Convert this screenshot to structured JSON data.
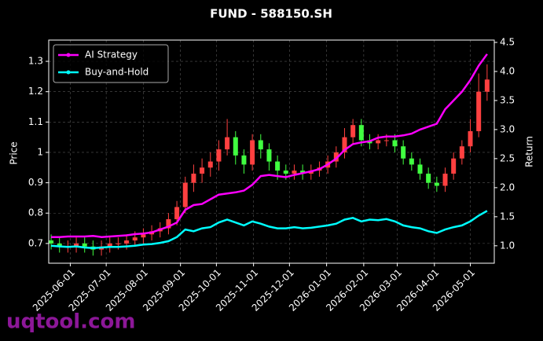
{
  "chart_data": {
    "type": "candlestick",
    "title": "FUND - 588150.SH",
    "ylabel": "Price",
    "y2label": "Return",
    "watermark": "uqtool.com",
    "x": [
      "2025-05-16",
      "2025-05-23",
      "2025-05-30",
      "2025-06-06",
      "2025-06-13",
      "2025-06-20",
      "2025-06-27",
      "2025-07-04",
      "2025-07-11",
      "2025-07-18",
      "2025-07-25",
      "2025-08-01",
      "2025-08-08",
      "2025-08-15",
      "2025-08-22",
      "2025-08-29",
      "2025-09-05",
      "2025-09-12",
      "2025-09-19",
      "2025-09-26",
      "2025-10-03",
      "2025-10-10",
      "2025-10-17",
      "2025-10-24",
      "2025-10-31",
      "2025-11-07",
      "2025-11-14",
      "2025-11-21",
      "2025-11-28",
      "2025-12-05",
      "2025-12-12",
      "2025-12-19",
      "2025-12-26",
      "2026-01-02",
      "2026-01-09",
      "2026-01-16",
      "2026-01-23",
      "2026-01-30",
      "2026-02-06",
      "2026-02-13",
      "2026-02-20",
      "2026-02-27",
      "2026-03-06",
      "2026-03-13",
      "2026-03-20",
      "2026-03-27",
      "2026-04-03",
      "2026-04-10",
      "2026-04-17",
      "2026-04-24",
      "2026-05-01",
      "2026-05-08",
      "2026-05-15"
    ],
    "open": [
      0.71,
      0.7,
      0.69,
      0.69,
      0.7,
      0.69,
      0.68,
      0.69,
      0.7,
      0.7,
      0.71,
      0.72,
      0.73,
      0.74,
      0.75,
      0.78,
      0.82,
      0.9,
      0.93,
      0.95,
      0.97,
      1.01,
      1.05,
      0.99,
      0.96,
      1.04,
      1.01,
      0.97,
      0.94,
      0.93,
      0.94,
      0.93,
      0.94,
      0.95,
      0.97,
      1.0,
      1.05,
      1.09,
      1.04,
      1.03,
      1.04,
      1.04,
      1.02,
      0.98,
      0.96,
      0.93,
      0.9,
      0.89,
      0.93,
      0.98,
      1.02,
      1.07,
      1.2
    ],
    "high": [
      0.73,
      0.72,
      0.71,
      0.72,
      0.72,
      0.71,
      0.71,
      0.72,
      0.72,
      0.73,
      0.74,
      0.75,
      0.76,
      0.77,
      0.8,
      0.84,
      0.92,
      0.96,
      0.98,
      1.0,
      1.04,
      1.11,
      1.07,
      1.01,
      1.06,
      1.06,
      1.03,
      0.99,
      0.96,
      0.96,
      0.96,
      0.96,
      0.97,
      0.99,
      1.02,
      1.08,
      1.11,
      1.11,
      1.06,
      1.06,
      1.06,
      1.06,
      1.04,
      1.0,
      0.98,
      0.95,
      0.92,
      0.95,
      1.0,
      1.04,
      1.11,
      1.26,
      1.29
    ],
    "low": [
      0.68,
      0.67,
      0.67,
      0.67,
      0.67,
      0.66,
      0.66,
      0.67,
      0.68,
      0.68,
      0.69,
      0.7,
      0.71,
      0.72,
      0.73,
      0.76,
      0.8,
      0.87,
      0.9,
      0.92,
      0.94,
      0.99,
      0.96,
      0.93,
      0.94,
      0.98,
      0.94,
      0.91,
      0.91,
      0.91,
      0.91,
      0.91,
      0.92,
      0.93,
      0.95,
      0.98,
      1.03,
      1.02,
      1.01,
      1.01,
      1.02,
      1.0,
      0.96,
      0.94,
      0.91,
      0.88,
      0.87,
      0.87,
      0.91,
      0.96,
      1.0,
      1.05,
      1.17
    ],
    "close": [
      0.7,
      0.69,
      0.69,
      0.7,
      0.69,
      0.68,
      0.69,
      0.7,
      0.7,
      0.71,
      0.72,
      0.73,
      0.74,
      0.75,
      0.78,
      0.82,
      0.9,
      0.93,
      0.95,
      0.97,
      1.01,
      1.05,
      0.99,
      0.96,
      1.04,
      1.01,
      0.97,
      0.94,
      0.93,
      0.94,
      0.93,
      0.94,
      0.95,
      0.97,
      1.0,
      1.05,
      1.09,
      1.04,
      1.03,
      1.04,
      1.04,
      1.02,
      0.98,
      0.96,
      0.93,
      0.9,
      0.89,
      0.93,
      0.98,
      1.02,
      1.07,
      1.2,
      1.24
    ],
    "up_color": "#ff4040",
    "down_color": "#40ff40",
    "series": [
      {
        "name": "AI Strategy",
        "color": "#ff00ff",
        "axis": "y2",
        "values": [
          1.15,
          1.15,
          1.16,
          1.16,
          1.16,
          1.17,
          1.15,
          1.16,
          1.17,
          1.18,
          1.2,
          1.21,
          1.23,
          1.28,
          1.33,
          1.4,
          1.62,
          1.7,
          1.72,
          1.8,
          1.88,
          1.9,
          1.92,
          1.95,
          2.05,
          2.2,
          2.22,
          2.2,
          2.18,
          2.22,
          2.25,
          2.28,
          2.32,
          2.4,
          2.5,
          2.65,
          2.75,
          2.78,
          2.8,
          2.86,
          2.88,
          2.88,
          2.9,
          2.93,
          3.0,
          3.05,
          3.1,
          3.35,
          3.5,
          3.65,
          3.85,
          4.1,
          4.3
        ]
      },
      {
        "name": "Buy-and-Hold",
        "color": "#00ffff",
        "axis": "y2",
        "values": [
          1.0,
          0.99,
          0.98,
          0.99,
          0.97,
          0.96,
          0.97,
          0.98,
          0.98,
          0.99,
          1.0,
          1.02,
          1.03,
          1.05,
          1.08,
          1.15,
          1.28,
          1.25,
          1.3,
          1.32,
          1.4,
          1.45,
          1.4,
          1.35,
          1.42,
          1.38,
          1.33,
          1.3,
          1.3,
          1.32,
          1.3,
          1.31,
          1.33,
          1.35,
          1.38,
          1.45,
          1.48,
          1.42,
          1.45,
          1.44,
          1.46,
          1.42,
          1.35,
          1.32,
          1.3,
          1.25,
          1.22,
          1.28,
          1.32,
          1.35,
          1.42,
          1.52,
          1.6
        ]
      }
    ],
    "xlim": [
      "2025-05-14",
      "2026-05-21"
    ],
    "xticks": [
      "2025-06-01",
      "2025-07-01",
      "2025-08-01",
      "2025-09-01",
      "2025-10-01",
      "2025-11-01",
      "2025-12-01",
      "2026-01-01",
      "2026-02-01",
      "2026-03-01",
      "2026-04-01",
      "2026-05-01"
    ],
    "ylim": [
      0.635,
      1.37
    ],
    "yticks": [
      0.7,
      0.8,
      0.9,
      1.0,
      1.1,
      1.2,
      1.3
    ],
    "y2lim": [
      0.7,
      4.54
    ],
    "y2ticks": [
      {
        "value": 1,
        "label": "1.0"
      },
      1.5,
      {
        "value": 2,
        "label": "2.0"
      },
      2.5,
      {
        "value": 3,
        "label": "3.0"
      },
      3.5,
      {
        "value": 4,
        "label": "4.0"
      },
      4.5
    ],
    "grid": true,
    "legend": "upper left"
  }
}
